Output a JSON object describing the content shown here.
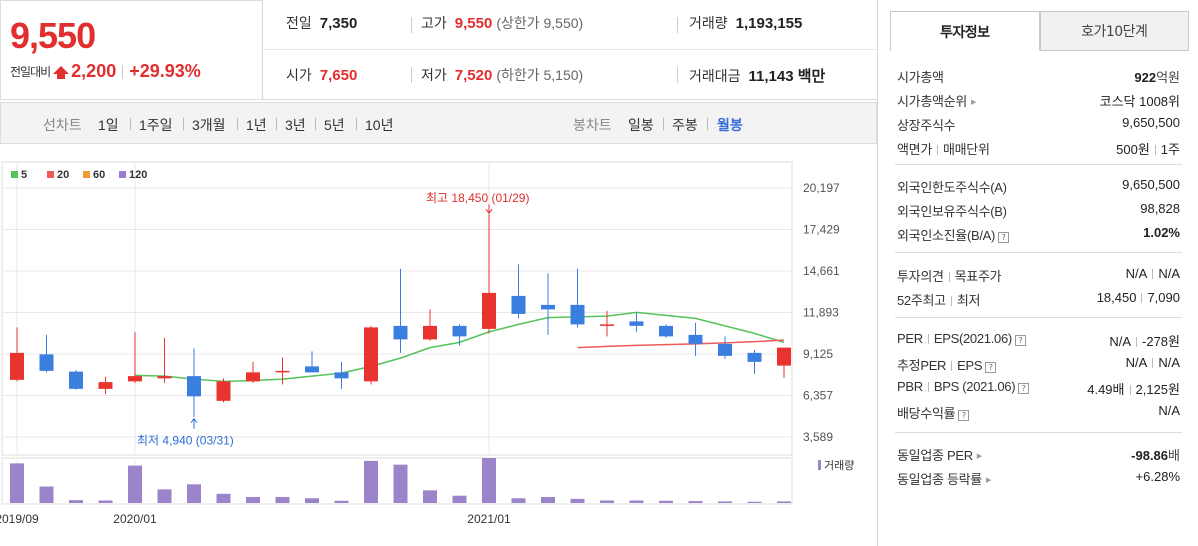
{
  "header": {
    "current_price": "9,550",
    "diff_label": "전일대비",
    "diff_value": "2,200",
    "diff_pct": "+29.93%",
    "prev_close_label": "전일",
    "prev_close": "7,350",
    "high_label": "고가",
    "high": "9,550",
    "upper_limit": "(상한가 9,550)",
    "volume_label": "거래량",
    "volume": "1,193,155",
    "open_label": "시가",
    "open": "7,650",
    "low_label": "저가",
    "low": "7,520",
    "lower_limit": "(하한가 5,150)",
    "amount_label": "거래대금",
    "amount": "11,143 백만"
  },
  "toolbar": {
    "line_title": "선차트",
    "line_periods": [
      "1일",
      "1주일",
      "3개월",
      "1년",
      "3년",
      "5년",
      "10년"
    ],
    "candle_title": "봉차트",
    "candle_periods": [
      "일봉",
      "주봉",
      "월봉"
    ],
    "candle_active": "월봉"
  },
  "chart_data": {
    "type": "candlestick",
    "legend": [
      {
        "name": "5",
        "color": "#56c35a"
      },
      {
        "name": "20",
        "color": "#ef5a5a"
      },
      {
        "name": "60",
        "color": "#f39a36"
      },
      {
        "name": "120",
        "color": "#9b7ad0"
      }
    ],
    "y_ticks": [
      20197,
      17429,
      14661,
      11893,
      9125,
      6357,
      3589
    ],
    "y_tick_labels": [
      "20,197",
      "17,429",
      "14,661",
      "11,893",
      "9,125",
      "6,357",
      "3,589"
    ],
    "x_tick_labels": [
      "2019/09",
      "2020/01",
      "2021/01"
    ],
    "volume_label": "거래량",
    "up_color": "#e8332e",
    "down_color": "#3a7ee0",
    "high_annotation": "최고 18,450 (01/29)",
    "low_annotation": "최저 4,940 (03/31)",
    "candles": [
      {
        "o": 7400,
        "h": 10900,
        "l": 7300,
        "c": 9200
      },
      {
        "o": 9100,
        "h": 10400,
        "l": 7900,
        "c": 8000
      },
      {
        "o": 7950,
        "h": 8050,
        "l": 6750,
        "c": 6800
      },
      {
        "o": 6800,
        "h": 7600,
        "l": 6450,
        "c": 7250
      },
      {
        "o": 7300,
        "h": 10600,
        "l": 7200,
        "c": 7650
      },
      {
        "o": 7500,
        "h": 10200,
        "l": 7200,
        "c": 7650
      },
      {
        "o": 7650,
        "h": 9500,
        "l": 4940,
        "c": 6300
      },
      {
        "o": 6000,
        "h": 7500,
        "l": 5900,
        "c": 7300
      },
      {
        "o": 7300,
        "h": 8600,
        "l": 7200,
        "c": 7900
      },
      {
        "o": 8000,
        "h": 8900,
        "l": 7100,
        "c": 8000
      },
      {
        "o": 8300,
        "h": 9300,
        "l": 7900,
        "c": 7900
      },
      {
        "o": 7900,
        "h": 8600,
        "l": 6800,
        "c": 7500
      },
      {
        "o": 7300,
        "h": 11000,
        "l": 7100,
        "c": 10900
      },
      {
        "o": 11000,
        "h": 14800,
        "l": 9200,
        "c": 10100
      },
      {
        "o": 10100,
        "h": 12100,
        "l": 10000,
        "c": 11000
      },
      {
        "o": 11000,
        "h": 11100,
        "l": 9700,
        "c": 10300
      },
      {
        "o": 10800,
        "h": 18450,
        "l": 10500,
        "c": 13200
      },
      {
        "o": 13000,
        "h": 15100,
        "l": 11500,
        "c": 11800
      },
      {
        "o": 12400,
        "h": 14500,
        "l": 10400,
        "c": 12100
      },
      {
        "o": 12400,
        "h": 14800,
        "l": 10900,
        "c": 11100
      },
      {
        "o": 11100,
        "h": 12000,
        "l": 10300,
        "c": 11100
      },
      {
        "o": 11300,
        "h": 11900,
        "l": 10600,
        "c": 11000
      },
      {
        "o": 11000,
        "h": 11100,
        "l": 10200,
        "c": 10300
      },
      {
        "o": 10400,
        "h": 11200,
        "l": 9000,
        "c": 9800
      },
      {
        "o": 9800,
        "h": 10300,
        "l": 8800,
        "c": 9000
      },
      {
        "o": 9200,
        "h": 9400,
        "l": 7800,
        "c": 8600
      },
      {
        "o": 8350,
        "h": 9550,
        "l": 7520,
        "c": 9550
      }
    ],
    "ma5": [
      null,
      null,
      null,
      null,
      7700,
      7650,
      7450,
      7300,
      7350,
      7450,
      7650,
      7850,
      8300,
      8850,
      9550,
      9900,
      10600,
      11100,
      11550,
      11600,
      11650,
      11900,
      11700,
      11500,
      11000,
      10500,
      9900
    ],
    "ma20": [
      null,
      null,
      null,
      null,
      null,
      null,
      null,
      null,
      null,
      null,
      null,
      null,
      null,
      null,
      null,
      null,
      null,
      null,
      null,
      9550,
      9630,
      9700,
      9750,
      9800,
      9870,
      9950,
      10050
    ],
    "volume": [
      1250000,
      520000,
      90000,
      80000,
      1180000,
      430000,
      590000,
      290000,
      190000,
      190000,
      150000,
      70000,
      1330000,
      1210000,
      400000,
      230000,
      1420000,
      150000,
      190000,
      130000,
      80000,
      80000,
      70000,
      60000,
      50000,
      40000,
      50000
    ]
  },
  "side": {
    "tabs": [
      "투자정보",
      "호가10단계"
    ],
    "active_tab": "투자정보",
    "market_cap_label": "시가총액",
    "market_cap_value": "922",
    "market_cap_unit": "억원",
    "rank_label": "시가총액순위",
    "rank_value": "코스닥 1008위",
    "shares_label": "상장주식수",
    "shares_value": "9,650,500",
    "par_label": "액면가",
    "unit_label": "매매단위",
    "par_value": "500원",
    "unit_value": "1주",
    "foreign_limit_label": "외국인한도주식수(A)",
    "foreign_limit_value": "9,650,500",
    "foreign_hold_label": "외국인보유주식수(B)",
    "foreign_hold_value": "98,828",
    "foreign_rate_label": "외국인소진율(B/A)",
    "foreign_rate_value": "1.02%",
    "opinion_label": "투자의견",
    "target_label": "목표주가",
    "opinion_value": "N/A",
    "target_value": "N/A",
    "w52_high_label": "52주최고",
    "w52_low_label": "최저",
    "w52_high_value": "18,450",
    "w52_low_value": "7,090",
    "per_label": "PER",
    "eps_label": "EPS(2021.06)",
    "per_value": "N/A",
    "eps_value": "-278원",
    "est_per_label": "추정PER",
    "est_eps_label": "EPS",
    "est_per_value": "N/A",
    "est_eps_value": "N/A",
    "pbr_label": "PBR",
    "bps_label": "BPS (2021.06)",
    "pbr_value": "4.49배",
    "bps_value": "2,125원",
    "div_label": "배당수익률",
    "div_value": "N/A",
    "ind_per_label": "동일업종 PER",
    "ind_per_value": "-98.86",
    "ind_per_unit": "배",
    "ind_rate_label": "동일업종 등락률",
    "ind_rate_value": "+6.28%"
  }
}
